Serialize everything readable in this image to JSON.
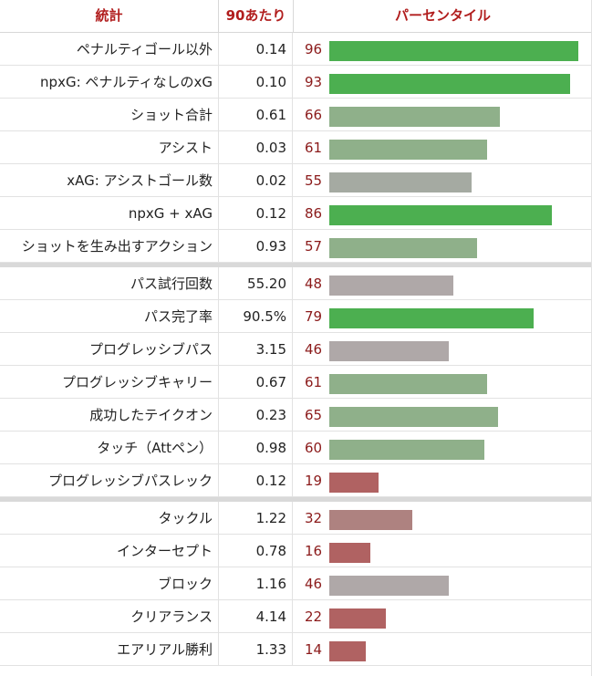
{
  "chart_data": {
    "type": "bar",
    "headers": {
      "stat": "統計",
      "per90": "90あたり",
      "percentile": "パーセンタイル"
    },
    "xlim": [
      0,
      100
    ],
    "groups": [
      {
        "rows": [
          {
            "label": "ペナルティゴール以外",
            "per90": "0.14",
            "percentile": 96
          },
          {
            "label": "npxG: ペナルティなしのxG",
            "per90": "0.10",
            "percentile": 93
          },
          {
            "label": "ショット合計",
            "per90": "0.61",
            "percentile": 66
          },
          {
            "label": "アシスト",
            "per90": "0.03",
            "percentile": 61
          },
          {
            "label": "xAG: アシストゴール数",
            "per90": "0.02",
            "percentile": 55
          },
          {
            "label": "npxG + xAG",
            "per90": "0.12",
            "percentile": 86
          },
          {
            "label": "ショットを生み出すアクション",
            "per90": "0.93",
            "percentile": 57
          }
        ]
      },
      {
        "rows": [
          {
            "label": "パス試行回数",
            "per90": "55.20",
            "percentile": 48
          },
          {
            "label": "パス完了率",
            "per90": "90.5%",
            "percentile": 79
          },
          {
            "label": "プログレッシブパス",
            "per90": "3.15",
            "percentile": 46
          },
          {
            "label": "プログレッシブキャリー",
            "per90": "0.67",
            "percentile": 61
          },
          {
            "label": "成功したテイクオン",
            "per90": "0.23",
            "percentile": 65
          },
          {
            "label": "タッチ（Attペン）",
            "per90": "0.98",
            "percentile": 60
          },
          {
            "label": "プログレッシブパスレック",
            "per90": "0.12",
            "percentile": 19
          }
        ]
      },
      {
        "rows": [
          {
            "label": "タックル",
            "per90": "1.22",
            "percentile": 32
          },
          {
            "label": "インターセプト",
            "per90": "0.78",
            "percentile": 16
          },
          {
            "label": "ブロック",
            "per90": "1.16",
            "percentile": 46
          },
          {
            "label": "クリアランス",
            "per90": "4.14",
            "percentile": 22
          },
          {
            "label": "エアリアル勝利",
            "per90": "1.33",
            "percentile": 14
          }
        ]
      }
    ]
  },
  "colors": {
    "header_text": "#b11d1d",
    "percentile_text": "#8b1a1a",
    "high": "#4caf50",
    "above": "#8fb08a",
    "mid_neutral": "#a5aaa2",
    "mid_low": "#afa8a8",
    "below": "#ae8280",
    "low": "#b06262"
  }
}
